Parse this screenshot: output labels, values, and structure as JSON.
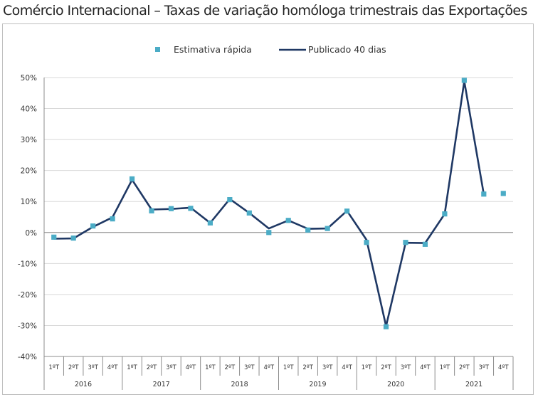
{
  "title": "Comércio Internacional – Taxas de variação homóloga trimestrais das Exportações",
  "chart_data": {
    "type": "line",
    "title": "Comércio Internacional – Taxas de variação homóloga trimestrais das Exportações",
    "xlabel": "",
    "ylabel": "",
    "ylim": [
      -40,
      50
    ],
    "y_ticks": [
      "50%",
      "40%",
      "30%",
      "20%",
      "10%",
      "0%",
      "-10%",
      "-20%",
      "-30%",
      "-40%"
    ],
    "grid": true,
    "legend_position": "top-center",
    "years": [
      "2016",
      "2017",
      "2018",
      "2019",
      "2020",
      "2021"
    ],
    "categories": [
      "1ºT",
      "2ºT",
      "3ºT",
      "4ºT",
      "1ºT",
      "2ºT",
      "3ºT",
      "4ºT",
      "1ºT",
      "2ºT",
      "3ºT",
      "4ºT",
      "1ºT",
      "2ºT",
      "3ºT",
      "4ºT",
      "1ºT",
      "2ºT",
      "3ºT",
      "4ºT",
      "1ºT",
      "2ºT",
      "3ºT",
      "4ºT"
    ],
    "series": [
      {
        "name": "Estimativa rápida",
        "style": "markers",
        "color": "#4bacc6",
        "values": [
          -1.5,
          -1.8,
          2.1,
          4.4,
          17.3,
          7.0,
          7.7,
          7.8,
          3.1,
          10.6,
          6.3,
          0.0,
          3.9,
          0.8,
          1.3,
          6.9,
          -3.2,
          -30.4,
          -3.2,
          -3.8,
          6.0,
          49.1,
          12.4,
          12.6
        ]
      },
      {
        "name": "Publicado 40 dias",
        "style": "line",
        "color": "#1f3864",
        "values": [
          -2.0,
          -1.9,
          1.8,
          4.9,
          17.0,
          7.4,
          7.6,
          8.0,
          3.1,
          10.8,
          6.3,
          1.3,
          3.9,
          1.2,
          1.3,
          7.0,
          -2.4,
          -30.2,
          -3.3,
          -3.4,
          6.0,
          48.8,
          12.4,
          null
        ]
      }
    ]
  }
}
